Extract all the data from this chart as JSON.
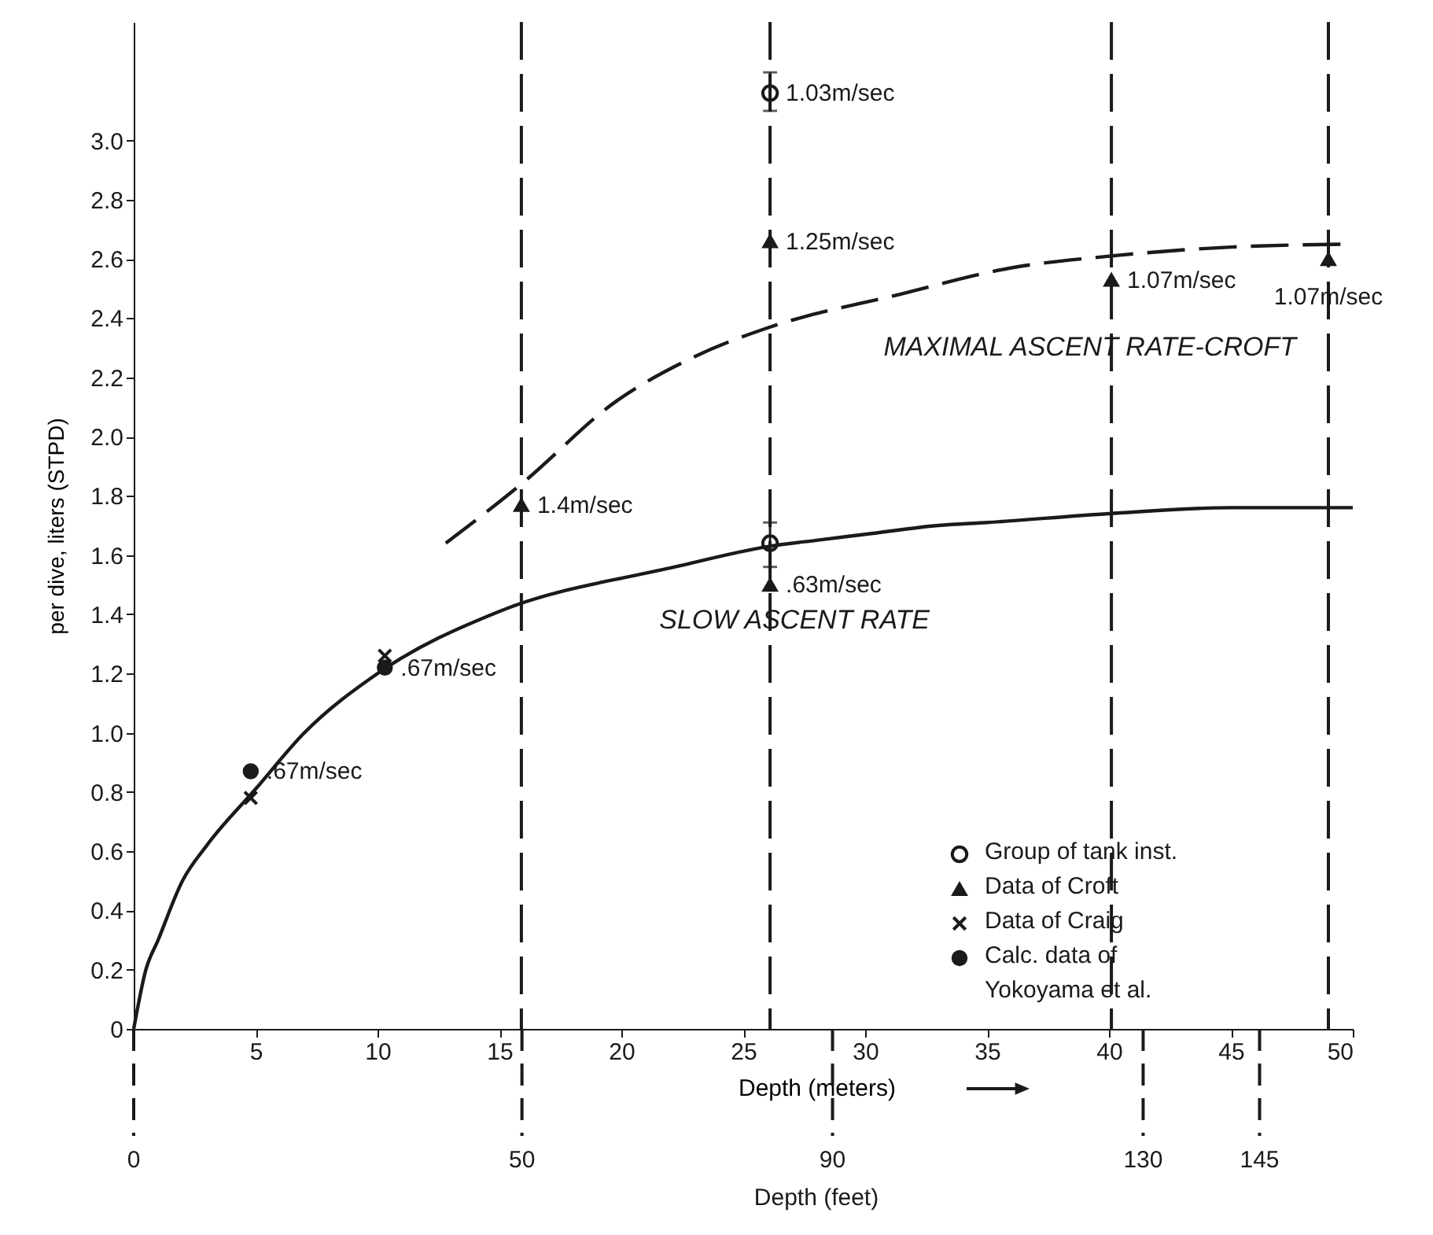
{
  "chart_data": {
    "type": "scatter",
    "xlabel": "Depth (meters)",
    "ylabel": "per dive, liters (STPD)",
    "x2label": "Depth (feet)",
    "xlim": [
      0,
      50
    ],
    "ylim": [
      0,
      3.4
    ],
    "x2lim": [
      0,
      157
    ],
    "xticks": [
      {
        "value": 0,
        "label": null
      },
      5,
      10,
      15,
      20,
      25,
      30,
      35,
      40,
      45,
      50
    ],
    "x2ticks": [
      0,
      50,
      90,
      130,
      145
    ],
    "yticks": [
      0,
      0.2,
      0.4,
      0.6,
      0.8,
      {
        "value": 1,
        "label": "1.0"
      },
      1.2,
      1.4,
      1.6,
      1.8,
      {
        "value": 2,
        "label": "2.0"
      },
      2.2,
      2.4,
      2.6,
      2.8,
      {
        "value": 3,
        "label": "3.0"
      }
    ],
    "grid": false,
    "legend": "bottom right",
    "series": [
      {
        "name": "SLOW ASCENT RATE",
        "type": "line",
        "color": "#1a1a1a",
        "line_style": "solid",
        "marker": "none",
        "x": [
          0,
          0.5,
          1,
          2,
          3,
          5,
          7,
          10,
          15,
          22.2,
          26.1,
          28,
          30,
          33,
          35,
          40,
          45,
          50
        ],
        "values": [
          0,
          0.2,
          0.3,
          0.5,
          0.62,
          0.81,
          1.0,
          1.2,
          1.41,
          1.56,
          1.63,
          1.65,
          1.67,
          1.7,
          1.71,
          1.74,
          1.76,
          1.76
        ]
      },
      {
        "name": "MAXIMAL ASCENT RATE-CROFT",
        "type": "line",
        "color": "#1a1a1a",
        "line_style": "dashed",
        "marker": "none",
        "x": [
          12.8,
          15.9,
          19.8,
          23,
          26.1,
          31.4,
          36,
          40.1,
          45,
          50
        ],
        "values": [
          1.64,
          1.84,
          2.12,
          2.27,
          2.37,
          2.48,
          2.57,
          2.61,
          2.64,
          2.65
        ]
      },
      {
        "name": "Group of tank inst.",
        "color": "#1a1a1a",
        "marker": "circle",
        "x": [
          26.1,
          26.1
        ],
        "values": [
          3.16,
          1.64
        ],
        "errors": [
          [
            3.1,
            3.23
          ],
          [
            1.56,
            1.71
          ]
        ]
      },
      {
        "name": "Data of Croft",
        "color": "#1a1a1a",
        "marker": "triangle",
        "x": [
          15.9,
          26.1,
          26.1,
          40.1,
          49
        ],
        "values": [
          1.77,
          2.66,
          1.5,
          2.53,
          2.6
        ]
      },
      {
        "name": "Data of Craig",
        "color": "#1a1a1a",
        "marker": "cross",
        "x": [
          4.8,
          10.3
        ],
        "values": [
          0.78,
          1.26
        ]
      },
      {
        "name": "Calc. data of\nYokoyama et al.",
        "color": "#1a1a1a",
        "marker": "circle",
        "x": [
          4.8,
          10.3
        ],
        "values": [
          0.87,
          1.22
        ]
      }
    ],
    "ref_lines": [
      {
        "axis": "x",
        "value": 15.9,
        "line_style": "dashed"
      },
      {
        "axis": "x",
        "value": 26.1,
        "line_style": "dashed"
      },
      {
        "axis": "x",
        "value": 40.1,
        "line_style": "dashed"
      },
      {
        "axis": "x",
        "value": 49,
        "line_style": "dashed"
      }
    ],
    "annotations": [
      {
        "text": "1.03m/sec",
        "x": 26.1,
        "y": 3.16
      },
      {
        "text": "1.25m/sec",
        "x": 26.1,
        "y": 2.66
      },
      {
        "text": "1.07m/sec",
        "x": 40.1,
        "y": 2.53
      },
      {
        "text": "1.07m/sec",
        "x": 49,
        "y": 2.6
      },
      {
        "text": "1.4m/sec",
        "x": 15.9,
        "y": 1.77
      },
      {
        "text": ".63m/sec",
        "x": 26.1,
        "y": 1.5
      },
      {
        "text": ".67m/sec",
        "x": 10.3,
        "y": 1.22
      },
      {
        "text": ".67m/sec",
        "x": 4.8,
        "y": 0.87
      }
    ]
  }
}
